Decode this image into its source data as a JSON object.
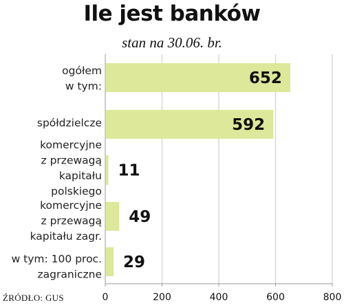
{
  "title": "Ile jest banków",
  "subtitle": "stan na 30.06. br.",
  "source": "ŹRÓDŁO: GUS",
  "colors": {
    "bar": "#dde89a",
    "highlight": "#e0182c",
    "text": "#111111",
    "axis": "#999999"
  },
  "chart_data": {
    "type": "bar",
    "orientation": "horizontal",
    "title": "Ile jest banków",
    "subtitle": "stan na 30.06. br.",
    "categories": [
      [
        "ogółem",
        "w tym:"
      ],
      [
        "spółdzielcze"
      ],
      [
        "komercyjne",
        "z przewagą",
        "kapitału",
        "polskiego"
      ],
      [
        "komercyjne",
        "z przewagą",
        "kapitału zagr."
      ],
      [
        "w tym: 100 proc.",
        "zagraniczne"
      ]
    ],
    "values": [
      652,
      592,
      11,
      49,
      29
    ],
    "highlight_index": 0,
    "xlim": [
      0,
      800
    ],
    "xticks": [
      0,
      200,
      400,
      600,
      800
    ],
    "grid": true
  }
}
